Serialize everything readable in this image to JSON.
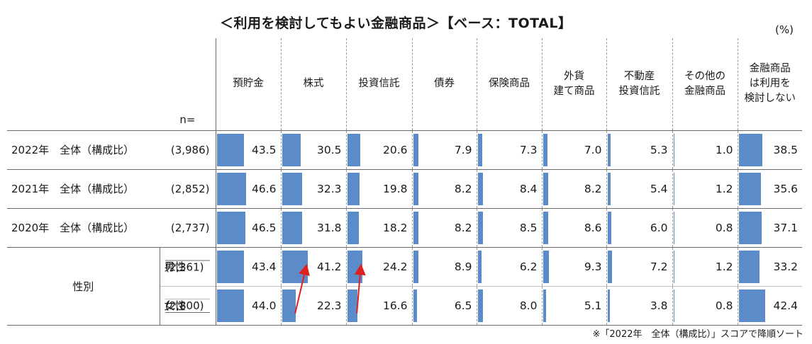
{
  "chart_data": {
    "type": "table",
    "title": "＜利用を検討してもよい金融商品＞【ベース：TOTAL】",
    "unit": "(%)",
    "n_label": "n=",
    "xmax": 100,
    "columns": [
      "預貯金",
      "株式",
      "投資信託",
      "債券",
      "保険商品",
      "外貨\n建て商品",
      "不動産\n投資信託",
      "その他の\n金融商品",
      "金融商品\nは利用を\n検討しない"
    ],
    "rows": [
      {
        "label": "2022年　全体（構成比）",
        "n": "(3,986)",
        "values": [
          43.5,
          30.5,
          20.6,
          7.9,
          7.3,
          7.0,
          5.3,
          1.0,
          38.5
        ]
      },
      {
        "label": "2021年　全体（構成比）",
        "n": "(2,852)",
        "values": [
          46.6,
          32.3,
          19.8,
          8.2,
          8.4,
          8.2,
          5.4,
          1.2,
          35.6
        ]
      },
      {
        "label": "2020年　全体（構成比）",
        "n": "(2,737)",
        "values": [
          46.5,
          31.8,
          18.2,
          8.2,
          8.5,
          8.6,
          6.0,
          0.8,
          37.1
        ]
      },
      {
        "label": "男性",
        "n": "(2,361)",
        "values": [
          43.4,
          41.2,
          24.2,
          8.9,
          6.2,
          9.3,
          7.2,
          1.2,
          33.2
        ]
      },
      {
        "label": "女性",
        "n": "(2,800)",
        "values": [
          44.0,
          22.3,
          16.6,
          6.5,
          8.0,
          5.1,
          3.8,
          0.8,
          42.4
        ]
      }
    ],
    "group_label": "性別",
    "footnote": "※「2022年　全体（構成比）」スコアで降順ソート",
    "bar_color": "#5b8bc9",
    "arrow_color": "#e02020"
  }
}
